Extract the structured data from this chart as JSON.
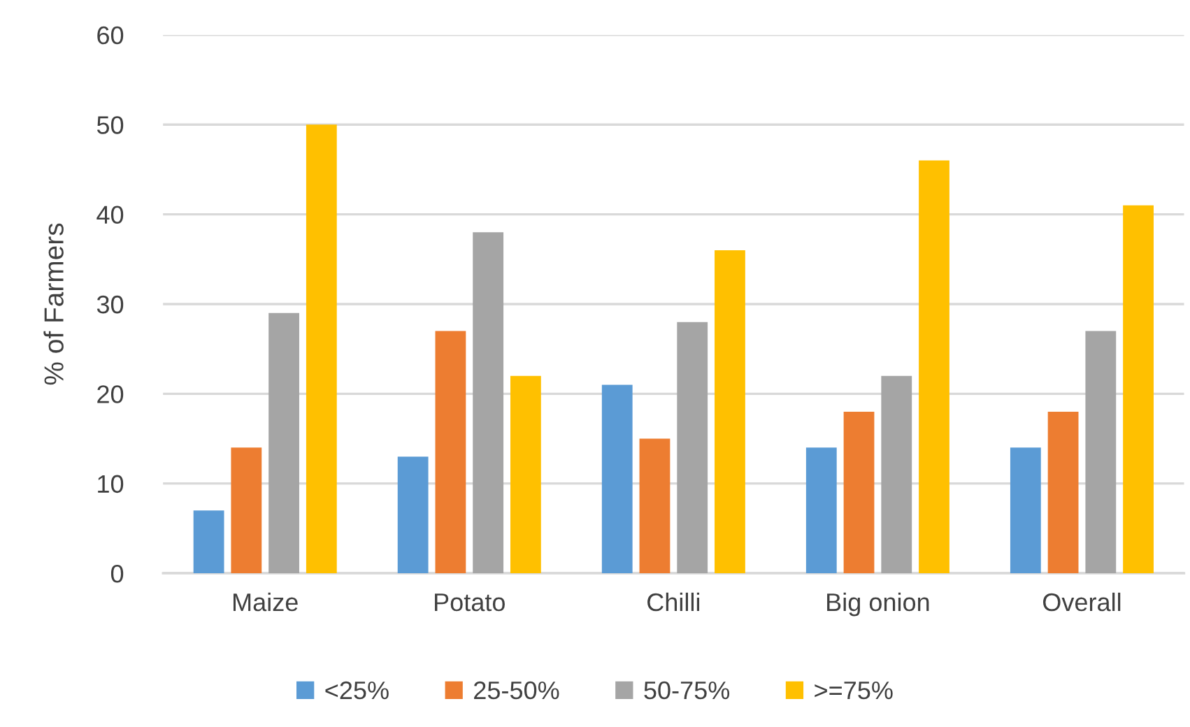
{
  "chart_data": {
    "type": "bar",
    "ylabel": "% of Farmers",
    "categories": [
      "Maize",
      "Potato",
      "Chilli",
      "Big onion",
      "Overall"
    ],
    "series": [
      {
        "name": "<25%",
        "color": "#5b9bd5",
        "values": [
          7,
          13,
          21,
          14,
          14
        ]
      },
      {
        "name": "25-50%",
        "color": "#ed7d31",
        "values": [
          14,
          27,
          15,
          18,
          18
        ]
      },
      {
        "name": "50-75%",
        "color": "#a5a5a5",
        "values": [
          29,
          38,
          28,
          22,
          27
        ]
      },
      {
        "name": ">=75%",
        "color": "#ffc000",
        "values": [
          50,
          22,
          36,
          46,
          41
        ]
      }
    ],
    "ylim": [
      0,
      60
    ],
    "yticks": [
      0,
      10,
      20,
      30,
      40,
      50,
      60
    ],
    "grid": "y",
    "legend": "bottom"
  }
}
